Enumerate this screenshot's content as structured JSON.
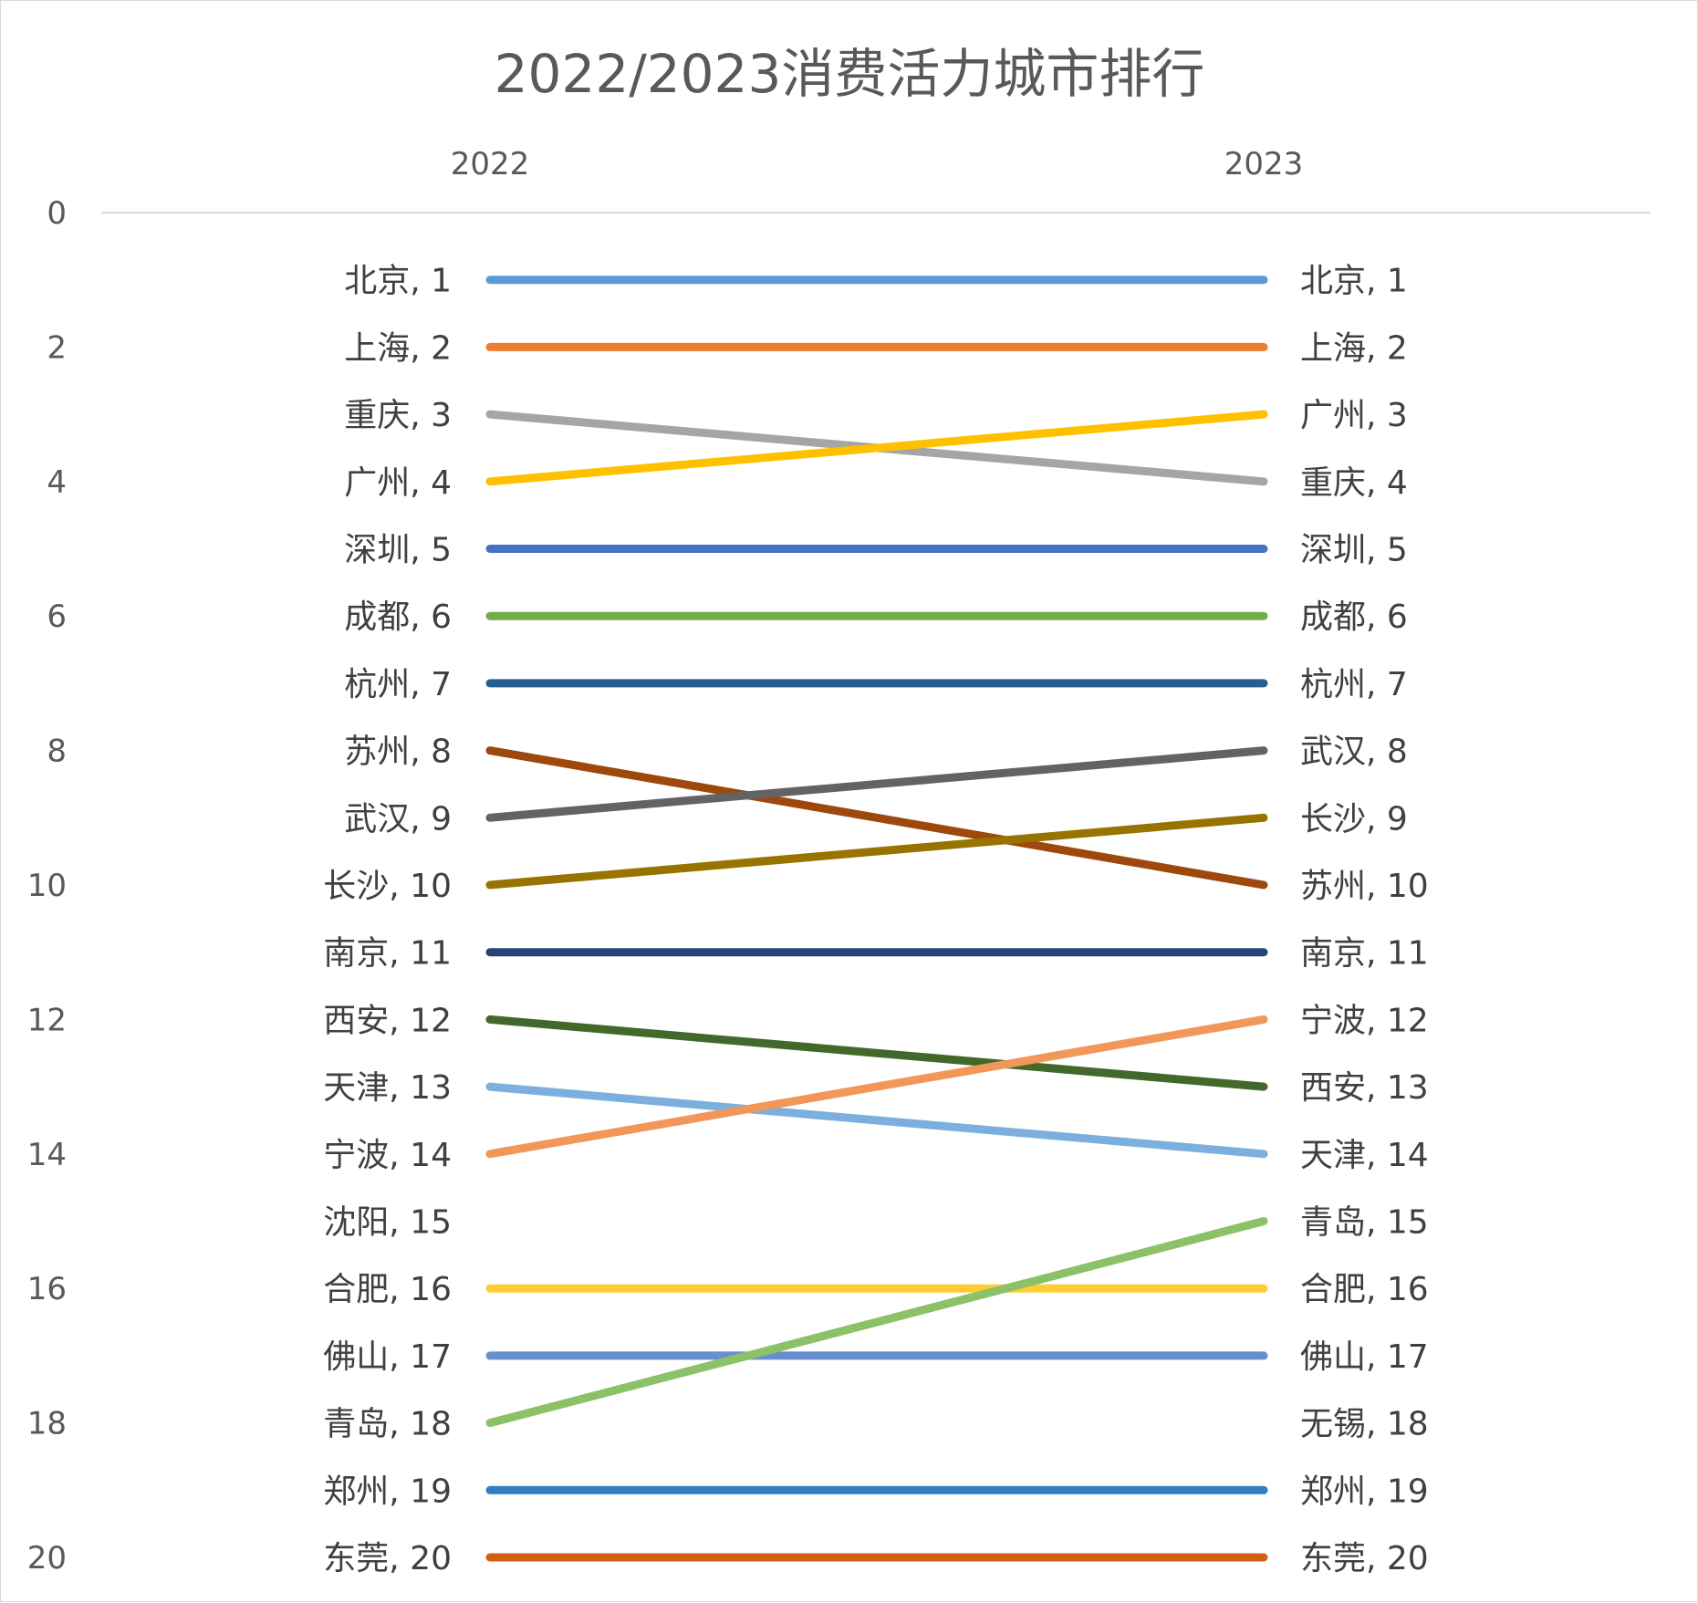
{
  "chart_data": {
    "type": "line",
    "title": "2022/2023消费活力城市排行",
    "categories": [
      "2022",
      "2023"
    ],
    "ylim": [
      0,
      20
    ],
    "y_reversed": true,
    "y_ticks": [
      0,
      2,
      4,
      6,
      8,
      10,
      12,
      14,
      16,
      18,
      20
    ],
    "grid": false,
    "legend": "none",
    "series": [
      {
        "labels": [
          "北京",
          "北京"
        ],
        "values": [
          1,
          1
        ],
        "color": "#5b9bd5"
      },
      {
        "labels": [
          "上海",
          "上海"
        ],
        "values": [
          2,
          2
        ],
        "color": "#ed7d31"
      },
      {
        "labels": [
          "重庆",
          "重庆"
        ],
        "values": [
          3,
          4
        ],
        "color": "#a5a5a5"
      },
      {
        "labels": [
          "广州",
          "广州"
        ],
        "values": [
          4,
          3
        ],
        "color": "#ffc000"
      },
      {
        "labels": [
          "深圳",
          "深圳"
        ],
        "values": [
          5,
          5
        ],
        "color": "#4472c4"
      },
      {
        "labels": [
          "成都",
          "成都"
        ],
        "values": [
          6,
          6
        ],
        "color": "#70ad47"
      },
      {
        "labels": [
          "杭州",
          "杭州"
        ],
        "values": [
          7,
          7
        ],
        "color": "#255e91"
      },
      {
        "labels": [
          "苏州",
          "苏州"
        ],
        "values": [
          8,
          10
        ],
        "color": "#9e480e"
      },
      {
        "labels": [
          "武汉",
          "武汉"
        ],
        "values": [
          9,
          8
        ],
        "color": "#636363"
      },
      {
        "labels": [
          "长沙",
          "长沙"
        ],
        "values": [
          10,
          9
        ],
        "color": "#997300"
      },
      {
        "labels": [
          "南京",
          "南京"
        ],
        "values": [
          11,
          11
        ],
        "color": "#264478"
      },
      {
        "labels": [
          "西安",
          "西安"
        ],
        "values": [
          12,
          13
        ],
        "color": "#43682b"
      },
      {
        "labels": [
          "天津",
          "天津"
        ],
        "values": [
          13,
          14
        ],
        "color": "#7cafdd"
      },
      {
        "labels": [
          "宁波",
          "宁波"
        ],
        "values": [
          14,
          12
        ],
        "color": "#f1975a"
      },
      {
        "labels": [
          "沈阳",
          null
        ],
        "values": [
          15,
          null
        ],
        "color": "#b7b7b7"
      },
      {
        "labels": [
          null,
          "无锡"
        ],
        "values": [
          null,
          18
        ],
        "color": "#b7b7b7"
      },
      {
        "labels": [
          "合肥",
          "合肥"
        ],
        "values": [
          16,
          16
        ],
        "color": "#ffcd33"
      },
      {
        "labels": [
          "佛山",
          "佛山"
        ],
        "values": [
          17,
          17
        ],
        "color": "#698ed0"
      },
      {
        "labels": [
          "青岛",
          "青岛"
        ],
        "values": [
          18,
          15
        ],
        "color": "#8cc168"
      },
      {
        "labels": [
          "郑州",
          "郑州"
        ],
        "values": [
          19,
          19
        ],
        "color": "#327dc2"
      },
      {
        "labels": [
          "东莞",
          "东莞"
        ],
        "values": [
          20,
          20
        ],
        "color": "#d26012"
      }
    ]
  }
}
